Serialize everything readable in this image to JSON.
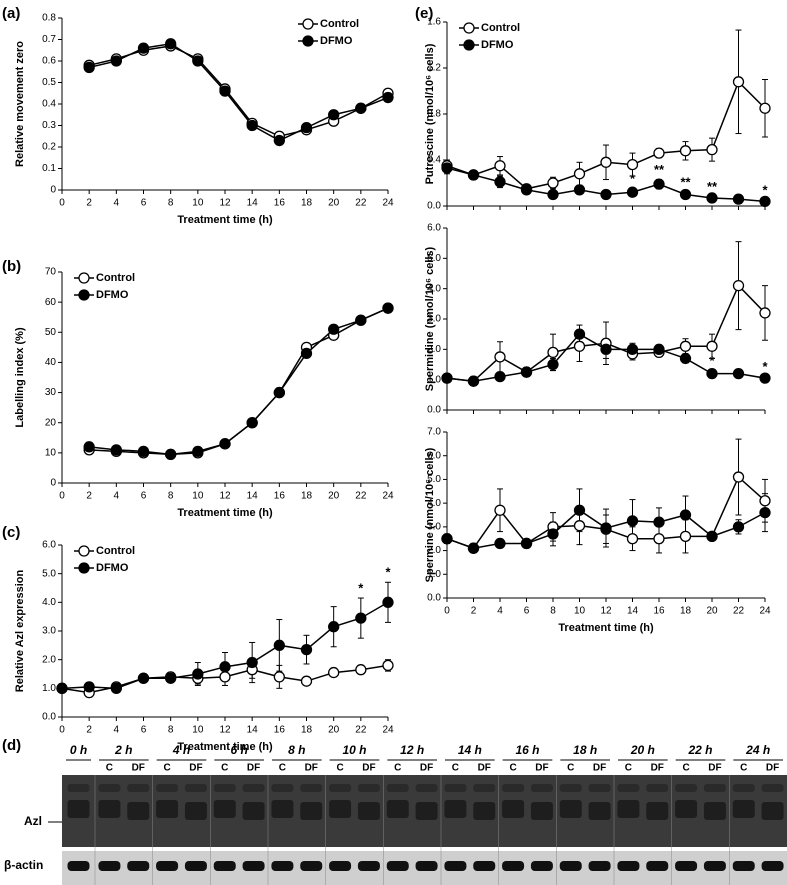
{
  "chart_data": [
    {
      "type": "line",
      "panel_label": "(a)",
      "ylabel": "Relative movement zero",
      "xlabel": "Treatment time (h)",
      "x": [
        2,
        4,
        6,
        8,
        10,
        12,
        14,
        16,
        18,
        20,
        22,
        24
      ],
      "series": [
        {
          "name": "Control",
          "color": "#000000",
          "marker_fill": "#ffffff",
          "values": [
            0.58,
            0.61,
            0.65,
            0.67,
            0.61,
            0.47,
            0.31,
            0.25,
            0.28,
            0.32,
            0.38,
            0.45
          ]
        },
        {
          "name": "DFMO",
          "color": "#000000",
          "marker_fill": "#000000",
          "values": [
            0.57,
            0.6,
            0.66,
            0.68,
            0.6,
            0.46,
            0.3,
            0.23,
            0.29,
            0.35,
            0.38,
            0.43
          ]
        }
      ],
      "xlim": [
        0,
        24
      ],
      "xticks": [
        0,
        2,
        4,
        6,
        8,
        10,
        12,
        14,
        16,
        18,
        20,
        22,
        24
      ],
      "ylim": [
        0,
        0.8
      ],
      "yticks": [
        0,
        0.1,
        0.2,
        0.3,
        0.4,
        0.5,
        0.6,
        0.7,
        0.8
      ],
      "legend": "upper right"
    },
    {
      "type": "line",
      "panel_label": "(b)",
      "ylabel": "Labelling index (%)",
      "xlabel": "Treatment time (h)",
      "x": [
        2,
        4,
        6,
        8,
        10,
        12,
        14,
        16,
        18,
        20,
        22,
        24
      ],
      "series": [
        {
          "name": "Control",
          "color": "#000000",
          "marker_fill": "#ffffff",
          "values": [
            11,
            10.5,
            10,
            9.5,
            10,
            13,
            20,
            30,
            45,
            49,
            54,
            58
          ]
        },
        {
          "name": "DFMO",
          "color": "#000000",
          "marker_fill": "#000000",
          "values": [
            12,
            11,
            10.5,
            9.5,
            10.5,
            13,
            20,
            30,
            43,
            51,
            54,
            58
          ]
        }
      ],
      "xlim": [
        0,
        24
      ],
      "xticks": [
        0,
        2,
        4,
        6,
        8,
        10,
        12,
        14,
        16,
        18,
        20,
        22,
        24
      ],
      "ylim": [
        0,
        70
      ],
      "yticks": [
        0,
        10,
        20,
        30,
        40,
        50,
        60,
        70
      ],
      "legend": "upper left"
    },
    {
      "type": "line",
      "panel_label": "(c)",
      "ylabel": "Relative Azl expression",
      "xlabel": "Treatment time (h)",
      "x": [
        0,
        2,
        4,
        6,
        8,
        10,
        12,
        14,
        16,
        18,
        20,
        22,
        24
      ],
      "series": [
        {
          "name": "Control",
          "color": "#000000",
          "marker_fill": "#ffffff",
          "values": [
            1.0,
            0.85,
            1.05,
            1.35,
            1.4,
            1.35,
            1.4,
            1.65,
            1.4,
            1.25,
            1.55,
            1.65,
            1.8
          ],
          "errors": [
            0,
            0.1,
            0.1,
            0.1,
            0.1,
            0.2,
            0.3,
            0.3,
            0.4,
            0.1,
            0.1,
            0.1,
            0.2
          ]
        },
        {
          "name": "DFMO",
          "color": "#000000",
          "marker_fill": "#000000",
          "values": [
            1.0,
            1.05,
            1.0,
            1.35,
            1.35,
            1.5,
            1.75,
            1.9,
            2.5,
            2.35,
            3.15,
            3.45,
            4.0
          ],
          "errors": [
            0,
            0.1,
            0.1,
            0.1,
            0.1,
            0.4,
            0.5,
            0.7,
            0.9,
            0.5,
            0.7,
            0.7,
            0.7
          ]
        }
      ],
      "xlim": [
        0,
        24
      ],
      "xticks": [
        0,
        2,
        4,
        6,
        8,
        10,
        12,
        14,
        16,
        18,
        20,
        22,
        24
      ],
      "ylim": [
        0,
        6
      ],
      "yticks": [
        {
          "value": 0,
          "label": "0.0"
        },
        {
          "value": 1,
          "label": "1.0"
        },
        {
          "value": 2,
          "label": "2.0"
        },
        {
          "value": 3,
          "label": "3.0"
        },
        {
          "value": 4,
          "label": "4.0"
        },
        {
          "value": 5,
          "label": "5.0"
        },
        {
          "value": 6,
          "label": "6.0"
        }
      ],
      "legend": "upper left",
      "annotations": [
        {
          "x": 22,
          "label": "*"
        },
        {
          "x": 24,
          "label": "*"
        }
      ]
    },
    {
      "type": "line",
      "panel_label": "(e)",
      "ylabel": "Putrescine (nmol/10⁶ cells)",
      "x": [
        0,
        2,
        4,
        6,
        8,
        10,
        12,
        14,
        16,
        18,
        20,
        22,
        24
      ],
      "series": [
        {
          "name": "Control",
          "color": "#000000",
          "marker_fill": "#ffffff",
          "values": [
            0.35,
            0.27,
            0.35,
            0.15,
            0.2,
            0.28,
            0.38,
            0.36,
            0.46,
            0.48,
            0.49,
            1.08,
            0.85
          ],
          "errors": [
            0.05,
            0.02,
            0.08,
            0.03,
            0.05,
            0.1,
            0.15,
            0.1,
            0.04,
            0.08,
            0.1,
            0.45,
            0.25
          ]
        },
        {
          "name": "DFMO",
          "color": "#000000",
          "marker_fill": "#000000",
          "values": [
            0.33,
            0.27,
            0.21,
            0.14,
            0.1,
            0.14,
            0.1,
            0.12,
            0.19,
            0.1,
            0.07,
            0.06,
            0.04
          ],
          "errors": [
            0.05,
            0.02,
            0.05,
            0.03,
            0.02,
            0.03,
            0.03,
            0.03,
            0.04,
            0.02,
            0.01,
            0.01,
            0.01
          ]
        }
      ],
      "xlim": [
        0,
        24
      ],
      "ylim": [
        0,
        1.6
      ],
      "yticks": [
        {
          "value": 0,
          "label": "0.0"
        },
        {
          "value": 0.4,
          "label": "0.4"
        },
        {
          "value": 0.8,
          "label": "0.8"
        },
        {
          "value": 1.2,
          "label": "1.2"
        },
        {
          "value": 1.6,
          "label": "1.6"
        }
      ],
      "legend": "upper left",
      "annotations": [
        {
          "x": 14,
          "label": "*"
        },
        {
          "x": 16,
          "label": "**"
        },
        {
          "x": 18,
          "label": "**"
        },
        {
          "x": 20,
          "label": "**"
        },
        {
          "x": 24,
          "label": "*"
        }
      ]
    },
    {
      "type": "line",
      "ylabel": "Spermidine (nmol/10⁶ cells)",
      "x": [
        0,
        2,
        4,
        6,
        8,
        10,
        12,
        14,
        16,
        18,
        20,
        22,
        24
      ],
      "series": [
        {
          "color": "#000000",
          "marker_fill": "#ffffff",
          "values": [
            1.05,
            0.95,
            1.75,
            1.25,
            1.9,
            2.1,
            2.2,
            1.85,
            1.9,
            2.1,
            2.1,
            4.1,
            3.2
          ],
          "errors": [
            0.05,
            0.05,
            0.5,
            0.1,
            0.6,
            0.5,
            0.7,
            0.2,
            0.15,
            0.25,
            0.4,
            1.45,
            0.9
          ]
        },
        {
          "color": "#000000",
          "marker_fill": "#000000",
          "values": [
            1.05,
            0.95,
            1.1,
            1.25,
            1.5,
            2.5,
            2.0,
            2.0,
            2.0,
            1.7,
            1.2,
            1.2,
            1.05
          ],
          "errors": [
            0.05,
            0.05,
            0.1,
            0.1,
            0.2,
            0.3,
            0.3,
            0.2,
            0.1,
            0.15,
            0.1,
            0.05,
            0.05
          ]
        }
      ],
      "xlim": [
        0,
        24
      ],
      "ylim": [
        0,
        6
      ],
      "yticks": [
        {
          "value": 0,
          "label": "0.0"
        },
        {
          "value": 1,
          "label": "1.0"
        },
        {
          "value": 2,
          "label": "2.0"
        },
        {
          "value": 3,
          "label": "3.0"
        },
        {
          "value": 4,
          "label": "4.0"
        },
        {
          "value": 5,
          "label": "5.0"
        },
        {
          "value": 6,
          "label": "6.0"
        }
      ],
      "annotations": [
        {
          "x": 20,
          "label": "*"
        },
        {
          "x": 24,
          "label": "*"
        }
      ]
    },
    {
      "type": "line",
      "ylabel": "Spermine (nmol/10⁶ cells)",
      "xlabel": "Treatment time (h)",
      "x": [
        0,
        2,
        4,
        6,
        8,
        10,
        12,
        14,
        16,
        18,
        20,
        22,
        24
      ],
      "series": [
        {
          "color": "#000000",
          "marker_fill": "#ffffff",
          "values": [
            2.5,
            2.1,
            3.7,
            2.3,
            3.0,
            3.05,
            2.9,
            2.5,
            2.5,
            2.6,
            2.6,
            5.1,
            4.1
          ],
          "errors": [
            0.2,
            0.1,
            0.9,
            0.1,
            0.6,
            0.8,
            0.6,
            0.5,
            0.6,
            0.7,
            0.1,
            1.6,
            0.9
          ]
        },
        {
          "color": "#000000",
          "marker_fill": "#000000",
          "values": [
            2.5,
            2.1,
            2.3,
            2.3,
            2.7,
            3.7,
            2.95,
            3.25,
            3.2,
            3.5,
            2.6,
            3.0,
            3.6
          ],
          "errors": [
            0.2,
            0.1,
            0.1,
            0.1,
            0.5,
            0.9,
            0.8,
            0.9,
            0.6,
            0.8,
            0.1,
            0.3,
            0.8
          ]
        }
      ],
      "xlim": [
        0,
        24
      ],
      "xticks": [
        0,
        2,
        4,
        6,
        8,
        10,
        12,
        14,
        16,
        18,
        20,
        22,
        24
      ],
      "ylim": [
        0,
        7
      ],
      "yticks": [
        {
          "value": 0,
          "label": "0.0"
        },
        {
          "value": 1,
          "label": "1.0"
        },
        {
          "value": 2,
          "label": "2.0"
        },
        {
          "value": 3,
          "label": "3.0"
        },
        {
          "value": 4,
          "label": "4.0"
        },
        {
          "value": 5,
          "label": "5.0"
        },
        {
          "value": 6,
          "label": "6.0"
        },
        {
          "value": 7,
          "label": "7.0"
        }
      ]
    }
  ],
  "blot": {
    "panel_label": "(d)",
    "times": [
      "0 h",
      "2 h",
      "4 h",
      "6 h",
      "8 h",
      "10 h",
      "12 h",
      "14 h",
      "16 h",
      "18 h",
      "20 h",
      "22 h",
      "24 h"
    ],
    "lanes": [
      "C",
      "DF"
    ],
    "rows": [
      "Azl",
      "β-actin"
    ]
  }
}
